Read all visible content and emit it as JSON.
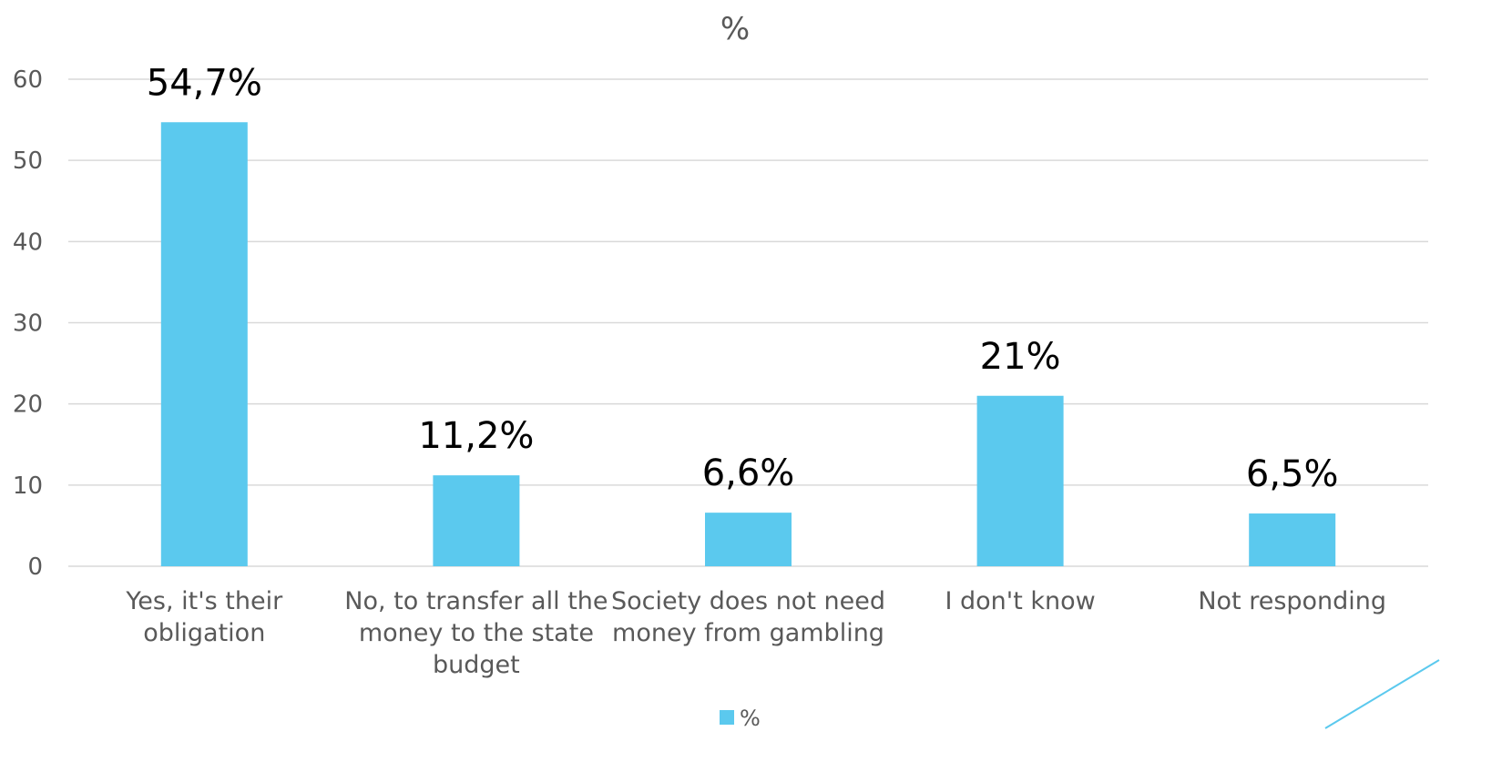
{
  "chart_data": {
    "type": "bar",
    "title": "%",
    "xlabel": "",
    "ylabel": "",
    "ylim": [
      0,
      60
    ],
    "yticks": [
      0,
      10,
      20,
      30,
      40,
      50,
      60
    ],
    "grid": true,
    "legend_position": "bottom",
    "categories": [
      [
        "Yes, it's their",
        "obligation"
      ],
      [
        "No, to transfer all the",
        "money to the state",
        "budget"
      ],
      [
        "Society does not need",
        "money from gambling"
      ],
      [
        "I don't know"
      ],
      [
        "Not responding"
      ]
    ],
    "series": [
      {
        "name": "%",
        "values": [
          54.7,
          11.2,
          6.6,
          21,
          6.5
        ],
        "labels": [
          "54,7%",
          "11,2%",
          "6,6%",
          "21%",
          "6,5%"
        ],
        "color": "#5bc9ee"
      }
    ]
  },
  "colors": {
    "bar": "#5bc9ee",
    "grid": "#d9d9d9",
    "text": "#595959",
    "decor_line": "#5bc9ee"
  }
}
